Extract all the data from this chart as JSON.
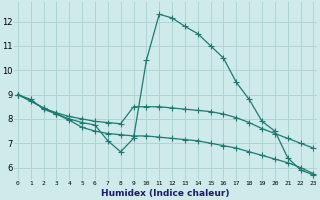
{
  "xlabel": "Humidex (Indice chaleur)",
  "bg_color": "#ceeaea",
  "grid_color": "#aed4d4",
  "line_color": "#1e7a70",
  "x_ticks": [
    0,
    1,
    2,
    3,
    4,
    5,
    6,
    7,
    8,
    9,
    10,
    11,
    12,
    13,
    14,
    15,
    16,
    17,
    18,
    19,
    20,
    21,
    22,
    23
  ],
  "ylim": [
    5.5,
    12.8
  ],
  "xlim": [
    -0.3,
    23.3
  ],
  "curve1_x": [
    0,
    1,
    2,
    3,
    4,
    5,
    6,
    7,
    8,
    9,
    10,
    11,
    12,
    13,
    14,
    15,
    16,
    17,
    18,
    19,
    20,
    21,
    22,
    23
  ],
  "curve1_y": [
    9.0,
    8.8,
    8.4,
    8.2,
    8.0,
    7.85,
    7.75,
    7.1,
    6.65,
    7.2,
    10.4,
    12.3,
    12.15,
    11.8,
    11.5,
    11.0,
    10.5,
    9.5,
    8.8,
    7.9,
    7.5,
    6.4,
    5.9,
    5.7
  ],
  "curve2_x": [
    0,
    2,
    3,
    4,
    5,
    6,
    7,
    8,
    9,
    10,
    11,
    12,
    13,
    14,
    15,
    16,
    17,
    18,
    19,
    20,
    21,
    22,
    23
  ],
  "curve2_y": [
    9.0,
    8.45,
    8.25,
    8.1,
    8.0,
    7.9,
    7.85,
    7.8,
    8.5,
    8.5,
    8.5,
    8.45,
    8.4,
    8.35,
    8.3,
    8.2,
    8.05,
    7.85,
    7.6,
    7.4,
    7.2,
    7.0,
    6.8
  ],
  "curve3_x": [
    0,
    1,
    2,
    3,
    4,
    5,
    6,
    7,
    8,
    9,
    10,
    11,
    12,
    13,
    14,
    15,
    16,
    17,
    18,
    19,
    20,
    21,
    22,
    23
  ],
  "curve3_y": [
    9.0,
    8.75,
    8.45,
    8.2,
    7.95,
    7.65,
    7.5,
    7.4,
    7.35,
    7.3,
    7.3,
    7.25,
    7.2,
    7.15,
    7.1,
    7.0,
    6.9,
    6.8,
    6.65,
    6.5,
    6.35,
    6.2,
    6.0,
    5.75
  ]
}
